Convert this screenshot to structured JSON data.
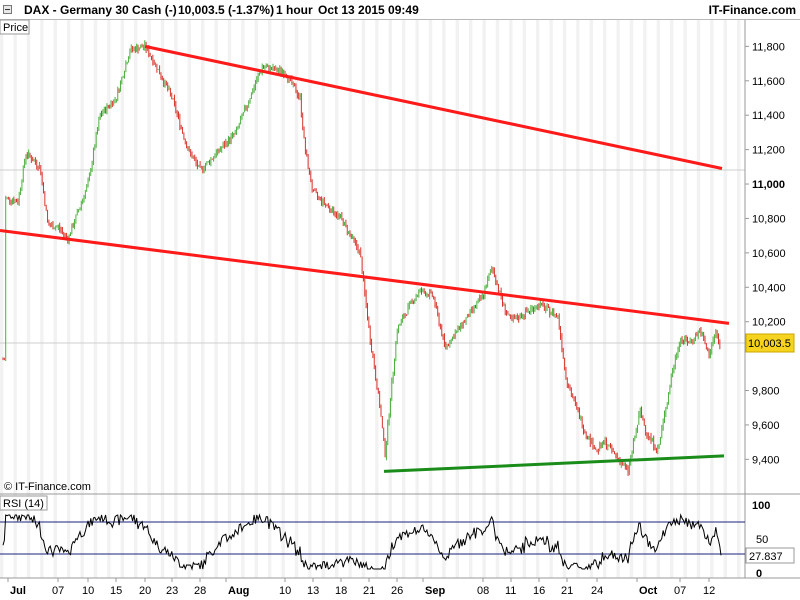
{
  "header": {
    "title": "DAX - Germany 30 Cash (-)",
    "quote": "10,003.5 (-1.37%)",
    "timeframe": "1 hour",
    "datetime": "Oct 13 2015 09:49",
    "brand": "IT-Finance.com"
  },
  "price_panel": {
    "label": "Price",
    "watermark": "© IT-Finance.com",
    "last_price_label": "10,003.5",
    "colors": {
      "up": "#4caf3e",
      "down": "#d8322a",
      "trendline_red": "#ff1a1a",
      "trendline_green": "#1a8c1a",
      "price_box": "#f5d31e"
    }
  },
  "rsi_panel": {
    "label": "RSI (14)",
    "last_value_label": "27.837",
    "y_ticks": [
      "100",
      "50",
      "0"
    ]
  },
  "chart_data": {
    "type": "candlestick",
    "instrument": "DAX - Germany 30 Cash (-)",
    "interval": "1 hour",
    "x_ticks": [
      "Jul",
      "07",
      "10",
      "15",
      "20",
      "23",
      "28",
      "Aug",
      "10",
      "13",
      "18",
      "21",
      "26",
      "Sep",
      "08",
      "11",
      "16",
      "21",
      "24",
      "Oct",
      "07",
      "12"
    ],
    "y_ticks": [
      "11,800",
      "11,600",
      "11,400",
      "11,200",
      "11,000",
      "10,800",
      "10,600",
      "10,400",
      "10,200",
      "9,800",
      "9,600",
      "9,400"
    ],
    "ylim": [
      9280,
      11930
    ],
    "last_price": 10003.5,
    "series": [
      {
        "values_anchor_points": [
          [
            "Jul",
            10900
          ],
          [
            "07",
            10750
          ],
          [
            "10",
            11000
          ],
          [
            "15",
            11500
          ],
          [
            "20",
            11800
          ],
          [
            "23",
            11500
          ],
          [
            "28",
            11080
          ],
          [
            "Aug",
            11300
          ],
          [
            "10",
            11650
          ],
          [
            "13",
            10950
          ],
          [
            "18",
            10800
          ],
          [
            "21",
            10150
          ],
          [
            "26",
            10150
          ],
          [
            "Sep",
            10350
          ],
          [
            "08",
            10350
          ],
          [
            "11",
            10200
          ],
          [
            "16",
            10300
          ],
          [
            "21",
            9850
          ],
          [
            "24",
            9450
          ],
          [
            "Oct",
            9550
          ],
          [
            "07",
            10100
          ],
          [
            "12",
            10003
          ]
        ]
      }
    ],
    "trendlines": [
      {
        "color": "red",
        "from": [
          "20",
          11800
        ],
        "to": [
          "12",
          11090
        ]
      },
      {
        "color": "red",
        "from": [
          "Jul",
          10730
        ],
        "to": [
          "12",
          10190
        ]
      },
      {
        "color": "green",
        "from": [
          "26",
          9330
        ],
        "to": [
          "12",
          9420
        ]
      }
    ],
    "rsi": {
      "name": "RSI (14)",
      "ylim": [
        0,
        100
      ],
      "levels": [
        70,
        30
      ],
      "last_value": 27.837
    }
  }
}
